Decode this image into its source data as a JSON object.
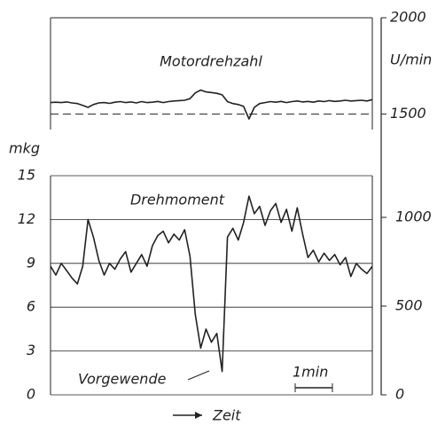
{
  "chart_data": [
    {
      "type": "line",
      "title": "Motordrehzahl",
      "y_label": "U/min",
      "color": "#222",
      "values": [
        1560,
        1562,
        1560,
        1563,
        1558,
        1555,
        1545,
        1535,
        1550,
        1558,
        1560,
        1556,
        1562,
        1565,
        1560,
        1563,
        1558,
        1565,
        1560,
        1562,
        1566,
        1560,
        1565,
        1568,
        1570,
        1572,
        1580,
        1610,
        1625,
        1615,
        1612,
        1608,
        1600,
        1565,
        1555,
        1550,
        1540,
        1475,
        1535,
        1555,
        1560,
        1565,
        1562,
        1566,
        1560,
        1565,
        1568,
        1563,
        1566,
        1562,
        1568,
        1565,
        1570,
        1566,
        1568,
        1572,
        1568,
        1570,
        1572,
        1568,
        1575
      ],
      "ylim": [
        1420,
        2000
      ],
      "yticks": [
        1500,
        2000
      ],
      "reference_line": 1500
    },
    {
      "type": "line",
      "title": "Drehmoment",
      "y_label": "mkg",
      "x_label": "Zeit",
      "color": "#222",
      "values": [
        8.8,
        8.2,
        9.0,
        8.5,
        8.0,
        7.6,
        8.8,
        12.0,
        10.8,
        9.2,
        8.2,
        9.0,
        8.6,
        9.3,
        9.8,
        8.4,
        9.0,
        9.6,
        8.8,
        10.2,
        10.9,
        11.2,
        10.4,
        11.0,
        10.6,
        11.3,
        9.5,
        5.5,
        3.2,
        4.5,
        3.6,
        4.2,
        1.6,
        10.8,
        11.4,
        10.6,
        11.8,
        13.6,
        12.4,
        12.9,
        11.6,
        12.6,
        13.1,
        11.8,
        12.7,
        11.2,
        12.8,
        11.0,
        9.4,
        9.9,
        9.1,
        9.7,
        9.2,
        9.6,
        8.9,
        9.4,
        8.1,
        9.0,
        8.6,
        8.3,
        8.8
      ],
      "ylim": [
        0,
        15
      ],
      "yticks": [
        0,
        3,
        6,
        9,
        12,
        15
      ],
      "y2lim": [
        0,
        1235
      ],
      "y2ticks": [
        0,
        500,
        1000
      ],
      "grid": true,
      "annotation": "Vorgewende",
      "scale_bar": "1min"
    }
  ]
}
